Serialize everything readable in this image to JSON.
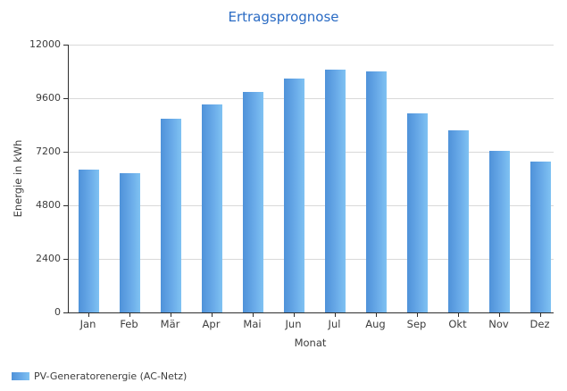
{
  "title": "Ertragsprognose",
  "legend": {
    "label": "PV-Generatorenergie (AC-Netz)"
  },
  "colors": {
    "title": "#2a6bc4",
    "bar_gradient_left": "#4f92d9",
    "bar_gradient_right": "#7fc2f2",
    "axis_line": "#2e2e2e",
    "gridline": "#d9d9d9",
    "label_text": "#3d3d3d",
    "background": "#ffffff"
  },
  "chart_data": {
    "type": "bar",
    "title": "Ertragsprognose",
    "xlabel": "Monat",
    "ylabel": "Energie in kWh",
    "categories": [
      "Jan",
      "Feb",
      "Mär",
      "Apr",
      "Mai",
      "Jun",
      "Jul",
      "Aug",
      "Sep",
      "Okt",
      "Nov",
      "Dez"
    ],
    "series": [
      {
        "name": "PV-Generatorenergie (AC-Netz)",
        "values": [
          6400,
          6250,
          8680,
          9320,
          9880,
          10480,
          10900,
          10800,
          8920,
          8160,
          7240,
          6760
        ]
      }
    ],
    "ylim": [
      0,
      12000
    ],
    "yticks": [
      0,
      2400,
      4800,
      7200,
      9600,
      12000
    ],
    "grid": "horizontal",
    "legend_position": "bottom-left"
  }
}
